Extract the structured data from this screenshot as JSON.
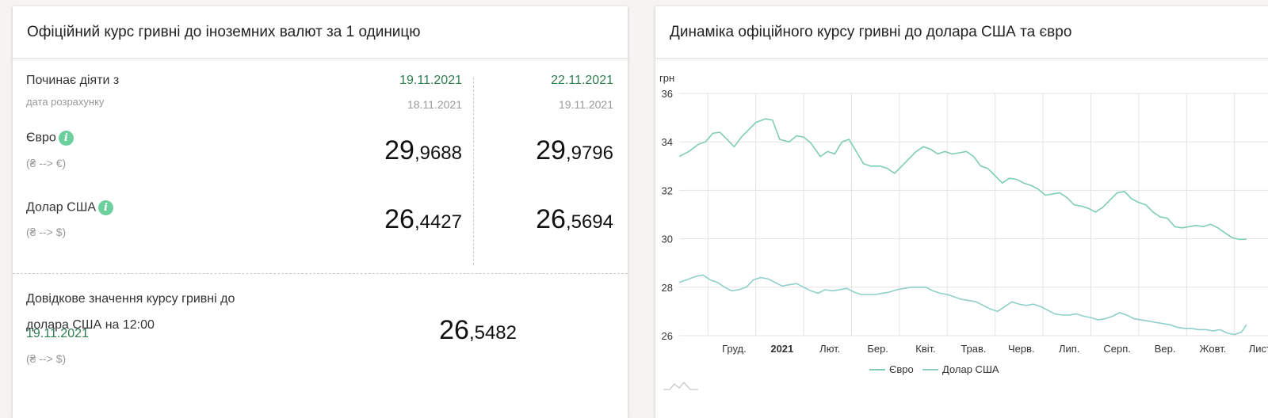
{
  "left": {
    "title": "Офіційний курс гривні до іноземних валют за 1 одиницю",
    "effective_label": "Починає діяти з",
    "calc_date_label": "дата розрахунку",
    "columns": [
      {
        "effective_date": "19.11.2021",
        "calc_date": "18.11.2021",
        "eur_int": "29",
        "eur_frac": ",9688",
        "usd_int": "26",
        "usd_frac": ",4427"
      },
      {
        "effective_date": "22.11.2021",
        "calc_date": "19.11.2021",
        "eur_int": "29",
        "eur_frac": ",9796",
        "usd_int": "26",
        "usd_frac": ",5694"
      }
    ],
    "eur_label": "Євро",
    "eur_note": "(₴ --> €)",
    "usd_label": "Долар США",
    "usd_note": "(₴ --> $)",
    "info_glyph": "i",
    "reference": {
      "label_line1": "Довідкове значення курсу гривні до",
      "label_line2": "долара США на 12:00",
      "date": "19.11.2021",
      "note": "(₴ --> $)",
      "value_int": "26",
      "value_frac": ",5482"
    }
  },
  "right": {
    "title": "Динаміка офіційного курсу гривні до долара США та євро"
  },
  "chart_data": {
    "type": "line",
    "ylabel": "грн",
    "ylim": [
      26,
      36
    ],
    "yticks": [
      26,
      28,
      30,
      32,
      34,
      36
    ],
    "x_range": [
      0,
      12.3
    ],
    "x_ticks": [
      {
        "x": 1,
        "label": "Груд."
      },
      {
        "x": 2,
        "label": "2021",
        "bold": true
      },
      {
        "x": 3,
        "label": "Лют."
      },
      {
        "x": 4,
        "label": "Бер."
      },
      {
        "x": 5,
        "label": "Квіт."
      },
      {
        "x": 6,
        "label": "Трав."
      },
      {
        "x": 7,
        "label": "Черв."
      },
      {
        "x": 8,
        "label": "Лип."
      },
      {
        "x": 9,
        "label": "Серп."
      },
      {
        "x": 10,
        "label": "Вер."
      },
      {
        "x": 11,
        "label": "Жовт."
      },
      {
        "x": 12,
        "label": "Лист."
      }
    ],
    "grid": true,
    "legend_position": "bottom",
    "series": [
      {
        "name": "Євро",
        "color": "#7fcdb4",
        "points": [
          [
            0,
            33.4
          ],
          [
            0.2,
            33.6
          ],
          [
            0.4,
            33.9
          ],
          [
            0.55,
            34.0
          ],
          [
            0.7,
            34.35
          ],
          [
            0.85,
            34.4
          ],
          [
            1.0,
            34.1
          ],
          [
            1.15,
            33.8
          ],
          [
            1.3,
            34.2
          ],
          [
            1.45,
            34.5
          ],
          [
            1.6,
            34.8
          ],
          [
            1.8,
            34.95
          ],
          [
            1.95,
            34.9
          ],
          [
            2.1,
            34.1
          ],
          [
            2.3,
            34.0
          ],
          [
            2.45,
            34.25
          ],
          [
            2.6,
            34.2
          ],
          [
            2.75,
            33.95
          ],
          [
            2.95,
            33.4
          ],
          [
            3.1,
            33.6
          ],
          [
            3.25,
            33.5
          ],
          [
            3.4,
            34.0
          ],
          [
            3.55,
            34.1
          ],
          [
            3.7,
            33.6
          ],
          [
            3.85,
            33.1
          ],
          [
            4.0,
            33.0
          ],
          [
            4.2,
            33.0
          ],
          [
            4.35,
            32.9
          ],
          [
            4.5,
            32.7
          ],
          [
            4.65,
            33.0
          ],
          [
            4.8,
            33.3
          ],
          [
            4.95,
            33.6
          ],
          [
            5.1,
            33.8
          ],
          [
            5.25,
            33.7
          ],
          [
            5.4,
            33.5
          ],
          [
            5.55,
            33.6
          ],
          [
            5.7,
            33.5
          ],
          [
            5.85,
            33.55
          ],
          [
            6.0,
            33.6
          ],
          [
            6.15,
            33.4
          ],
          [
            6.3,
            33.0
          ],
          [
            6.45,
            32.9
          ],
          [
            6.6,
            32.6
          ],
          [
            6.75,
            32.3
          ],
          [
            6.9,
            32.5
          ],
          [
            7.05,
            32.45
          ],
          [
            7.2,
            32.3
          ],
          [
            7.35,
            32.2
          ],
          [
            7.5,
            32.05
          ],
          [
            7.65,
            31.8
          ],
          [
            7.8,
            31.85
          ],
          [
            7.95,
            31.9
          ],
          [
            8.1,
            31.7
          ],
          [
            8.25,
            31.4
          ],
          [
            8.4,
            31.35
          ],
          [
            8.55,
            31.25
          ],
          [
            8.7,
            31.1
          ],
          [
            8.85,
            31.3
          ],
          [
            9.0,
            31.6
          ],
          [
            9.15,
            31.9
          ],
          [
            9.3,
            31.95
          ],
          [
            9.45,
            31.65
          ],
          [
            9.6,
            31.5
          ],
          [
            9.75,
            31.4
          ],
          [
            9.9,
            31.1
          ],
          [
            10.05,
            30.9
          ],
          [
            10.2,
            30.85
          ],
          [
            10.35,
            30.5
          ],
          [
            10.5,
            30.45
          ],
          [
            10.65,
            30.5
          ],
          [
            10.8,
            30.55
          ],
          [
            10.95,
            30.5
          ],
          [
            11.1,
            30.6
          ],
          [
            11.25,
            30.45
          ],
          [
            11.4,
            30.25
          ],
          [
            11.55,
            30.05
          ],
          [
            11.7,
            29.97
          ],
          [
            11.85,
            29.98
          ]
        ]
      },
      {
        "name": "Долар США",
        "color": "#8fd0c8",
        "points": [
          [
            0,
            28.2
          ],
          [
            0.15,
            28.3
          ],
          [
            0.35,
            28.45
          ],
          [
            0.5,
            28.5
          ],
          [
            0.65,
            28.3
          ],
          [
            0.8,
            28.2
          ],
          [
            0.95,
            28.0
          ],
          [
            1.1,
            27.85
          ],
          [
            1.25,
            27.9
          ],
          [
            1.4,
            28.0
          ],
          [
            1.55,
            28.3
          ],
          [
            1.7,
            28.4
          ],
          [
            1.85,
            28.35
          ],
          [
            2.0,
            28.2
          ],
          [
            2.15,
            28.05
          ],
          [
            2.3,
            28.1
          ],
          [
            2.45,
            28.15
          ],
          [
            2.6,
            28.0
          ],
          [
            2.75,
            27.85
          ],
          [
            2.9,
            27.75
          ],
          [
            3.05,
            27.9
          ],
          [
            3.2,
            27.85
          ],
          [
            3.35,
            27.9
          ],
          [
            3.5,
            27.95
          ],
          [
            3.65,
            27.8
          ],
          [
            3.8,
            27.7
          ],
          [
            3.95,
            27.7
          ],
          [
            4.1,
            27.7
          ],
          [
            4.25,
            27.75
          ],
          [
            4.4,
            27.8
          ],
          [
            4.55,
            27.9
          ],
          [
            4.7,
            27.95
          ],
          [
            4.85,
            28.0
          ],
          [
            5.0,
            28.0
          ],
          [
            5.15,
            28.0
          ],
          [
            5.3,
            27.85
          ],
          [
            5.45,
            27.75
          ],
          [
            5.6,
            27.7
          ],
          [
            5.75,
            27.6
          ],
          [
            5.9,
            27.5
          ],
          [
            6.05,
            27.45
          ],
          [
            6.2,
            27.4
          ],
          [
            6.35,
            27.25
          ],
          [
            6.5,
            27.1
          ],
          [
            6.65,
            27.0
          ],
          [
            6.8,
            27.2
          ],
          [
            6.95,
            27.4
          ],
          [
            7.1,
            27.3
          ],
          [
            7.25,
            27.25
          ],
          [
            7.4,
            27.3
          ],
          [
            7.55,
            27.2
          ],
          [
            7.7,
            27.05
          ],
          [
            7.85,
            26.9
          ],
          [
            8.0,
            26.85
          ],
          [
            8.15,
            26.85
          ],
          [
            8.3,
            26.9
          ],
          [
            8.45,
            26.8
          ],
          [
            8.6,
            26.75
          ],
          [
            8.75,
            26.65
          ],
          [
            8.9,
            26.7
          ],
          [
            9.05,
            26.8
          ],
          [
            9.2,
            26.95
          ],
          [
            9.35,
            26.85
          ],
          [
            9.5,
            26.7
          ],
          [
            9.65,
            26.65
          ],
          [
            9.8,
            26.6
          ],
          [
            9.95,
            26.55
          ],
          [
            10.1,
            26.5
          ],
          [
            10.25,
            26.45
          ],
          [
            10.4,
            26.35
          ],
          [
            10.55,
            26.3
          ],
          [
            10.7,
            26.3
          ],
          [
            10.85,
            26.25
          ],
          [
            11.0,
            26.25
          ],
          [
            11.15,
            26.2
          ],
          [
            11.3,
            26.25
          ],
          [
            11.45,
            26.1
          ],
          [
            11.6,
            26.05
          ],
          [
            11.75,
            26.15
          ],
          [
            11.85,
            26.45
          ]
        ]
      }
    ]
  }
}
